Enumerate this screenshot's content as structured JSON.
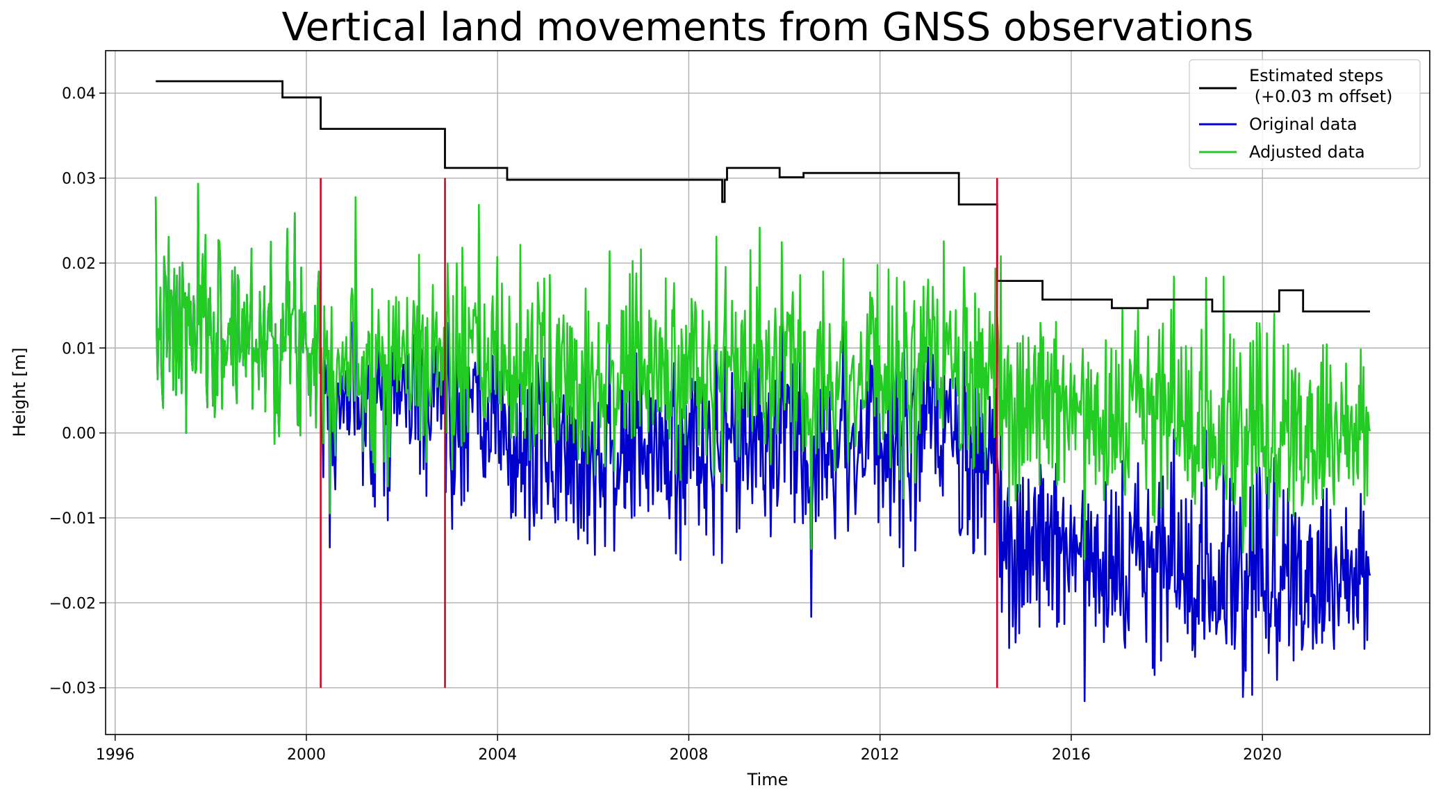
{
  "chart_data": {
    "type": "line",
    "title": "Vertical land movements from GNSS observations",
    "xlabel": "Time",
    "ylabel": "Height [m]",
    "xlim": [
      1995.8,
      2023.5
    ],
    "ylim": [
      -0.0355,
      0.045
    ],
    "grid": true,
    "legend_position": "top-right",
    "x_ticks": [
      1996,
      2000,
      2004,
      2008,
      2012,
      2016,
      2020
    ],
    "x_tick_labels": [
      "1996",
      "2000",
      "2004",
      "2008",
      "2012",
      "2016",
      "2020"
    ],
    "y_ticks": [
      -0.03,
      -0.02,
      -0.01,
      0.0,
      0.01,
      0.02,
      0.03,
      0.04
    ],
    "y_tick_labels": [
      "−0.03",
      "−0.02",
      "−0.01",
      "0.00",
      "0.01",
      "0.02",
      "0.03",
      "0.04"
    ],
    "colors": {
      "steps": "#000000",
      "original": "#0000cc",
      "adjusted": "#22cc22",
      "step_markers": "#dd0022",
      "grid": "#b0b0b0"
    },
    "series": [
      {
        "name": "Estimated steps\n (+0.03 m offset)",
        "legend_lines": [
          "Estimated steps",
          " (+0.03 m offset)"
        ],
        "kind": "step",
        "segments": [
          {
            "x_start": 1996.85,
            "x_end": 1999.5,
            "y": 0.0414
          },
          {
            "x_start": 1999.5,
            "x_end": 2000.3,
            "y": 0.0395
          },
          {
            "x_start": 2000.3,
            "x_end": 2002.9,
            "y": 0.0358
          },
          {
            "x_start": 2002.9,
            "x_end": 2004.2,
            "y": 0.0312
          },
          {
            "x_start": 2004.2,
            "x_end": 2008.7,
            "y": 0.0298
          },
          {
            "x_start": 2008.7,
            "x_end": 2008.75,
            "y": 0.0272
          },
          {
            "x_start": 2008.75,
            "x_end": 2008.8,
            "y": 0.0298
          },
          {
            "x_start": 2008.8,
            "x_end": 2009.9,
            "y": 0.0312
          },
          {
            "x_start": 2009.9,
            "x_end": 2010.4,
            "y": 0.0301
          },
          {
            "x_start": 2010.4,
            "x_end": 2013.65,
            "y": 0.0306
          },
          {
            "x_start": 2013.65,
            "x_end": 2014.45,
            "y": 0.0269
          },
          {
            "x_start": 2014.45,
            "x_end": 2015.4,
            "y": 0.0179
          },
          {
            "x_start": 2015.4,
            "x_end": 2016.85,
            "y": 0.0157
          },
          {
            "x_start": 2016.85,
            "x_end": 2017.6,
            "y": 0.0147
          },
          {
            "x_start": 2017.6,
            "x_end": 2018.95,
            "y": 0.0157
          },
          {
            "x_start": 2018.95,
            "x_end": 2020.35,
            "y": 0.0143
          },
          {
            "x_start": 2020.35,
            "x_end": 2020.85,
            "y": 0.0168
          },
          {
            "x_start": 2020.85,
            "x_end": 2022.25,
            "y": 0.0143
          }
        ]
      },
      {
        "name": "Original data",
        "kind": "noisy",
        "x_start": 1996.85,
        "x_end": 2022.25,
        "n_points": 1320,
        "noise_std": 0.0058,
        "seed": 7,
        "level_segments": [
          {
            "x_start": 1996.85,
            "x_end": 2000.3,
            "level": 0.0118
          },
          {
            "x_start": 2000.3,
            "x_end": 2002.9,
            "level": 0.0048
          },
          {
            "x_start": 2002.9,
            "x_end": 2004.2,
            "level": 0.0012
          },
          {
            "x_start": 2004.2,
            "x_end": 2008.8,
            "level": -0.0022
          },
          {
            "x_start": 2008.8,
            "x_end": 2010.4,
            "level": -0.001
          },
          {
            "x_start": 2010.4,
            "x_end": 2013.65,
            "level": -0.0008
          },
          {
            "x_start": 2013.65,
            "x_end": 2014.45,
            "level": -0.0045
          },
          {
            "x_start": 2014.45,
            "x_end": 2017.0,
            "level": -0.0132
          },
          {
            "x_start": 2017.0,
            "x_end": 2019.0,
            "level": -0.0162
          },
          {
            "x_start": 2019.0,
            "x_end": 2022.25,
            "level": -0.0165
          }
        ]
      },
      {
        "name": "Adjusted data",
        "kind": "noisy",
        "x_start": 1996.85,
        "x_end": 2022.25,
        "n_points": 1320,
        "noise_std": 0.0058,
        "seed": 7,
        "level_segments": [
          {
            "x_start": 1996.85,
            "x_end": 2000.3,
            "level": 0.0118
          },
          {
            "x_start": 2000.3,
            "x_end": 2002.9,
            "level": 0.0088
          },
          {
            "x_start": 2002.9,
            "x_end": 2004.2,
            "level": 0.0082
          },
          {
            "x_start": 2004.2,
            "x_end": 2008.8,
            "level": 0.0072
          },
          {
            "x_start": 2008.8,
            "x_end": 2010.4,
            "level": 0.0075
          },
          {
            "x_start": 2010.4,
            "x_end": 2013.65,
            "level": 0.0072
          },
          {
            "x_start": 2013.65,
            "x_end": 2014.45,
            "level": 0.0055
          },
          {
            "x_start": 2014.45,
            "x_end": 2017.0,
            "level": 0.0035
          },
          {
            "x_start": 2017.0,
            "x_end": 2019.0,
            "level": 0.0018
          },
          {
            "x_start": 2019.0,
            "x_end": 2022.25,
            "level": 0.0005
          }
        ]
      }
    ],
    "step_markers": [
      {
        "x": 2000.3,
        "y_min": -0.03,
        "y_max": 0.03
      },
      {
        "x": 2002.9,
        "y_min": -0.03,
        "y_max": 0.03
      },
      {
        "x": 2014.45,
        "y_min": -0.03,
        "y_max": 0.03
      }
    ]
  }
}
